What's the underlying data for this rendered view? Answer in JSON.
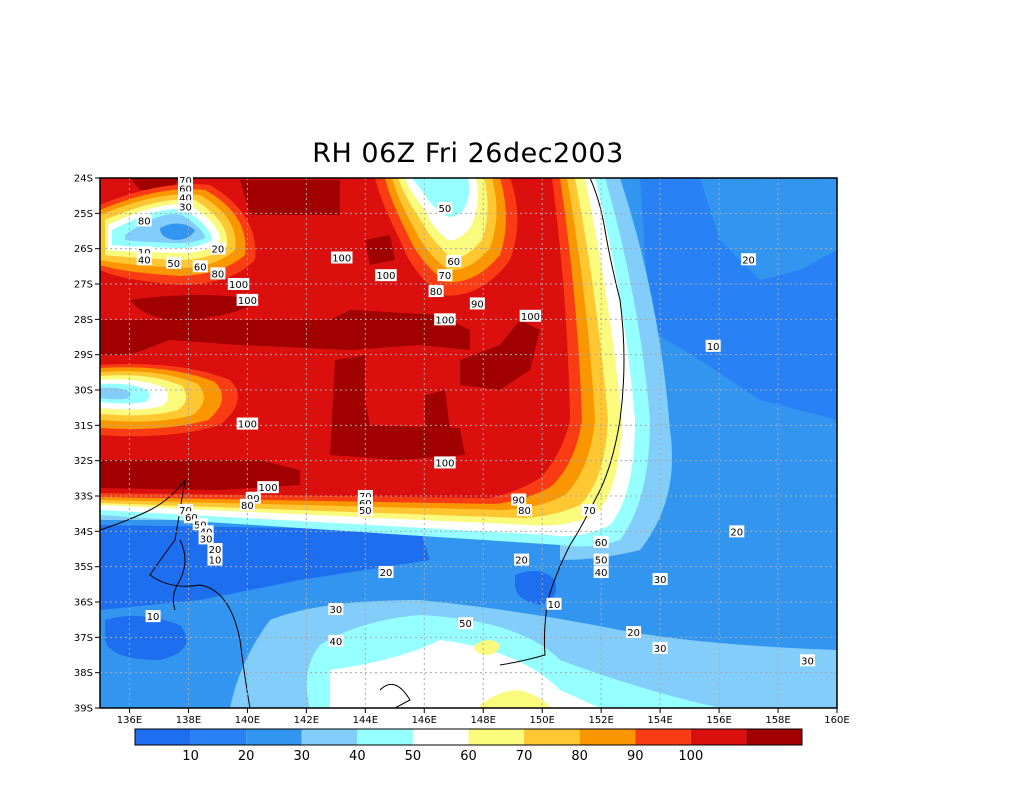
{
  "title": "RH 06Z Fri 26dec2003",
  "x_ticks": [
    "136E",
    "138E",
    "140E",
    "142E",
    "144E",
    "146E",
    "148E",
    "150E",
    "152E",
    "154E",
    "156E",
    "158E",
    "160E"
  ],
  "y_ticks": [
    "24S",
    "25S",
    "26S",
    "27S",
    "28S",
    "29S",
    "30S",
    "31S",
    "32S",
    "33S",
    "34S",
    "35S",
    "36S",
    "37S",
    "38S",
    "39S"
  ],
  "colorbar": {
    "colors": [
      "#1e6ef0",
      "#2882f5",
      "#3296f0",
      "#82cdfa",
      "#96ffff",
      "#ffffff",
      "#fafa7d",
      "#ffc832",
      "#fa9600",
      "#fa3c14",
      "#dc0f0f",
      "#a00000"
    ],
    "labels": [
      "10",
      "20",
      "30",
      "40",
      "50",
      "60",
      "70",
      "80",
      "90",
      "100"
    ]
  },
  "contour_labels": [
    {
      "text": "70",
      "lon": 137.9,
      "lat": 24.05
    },
    {
      "text": "60",
      "lon": 137.9,
      "lat": 24.3
    },
    {
      "text": "40",
      "lon": 137.9,
      "lat": 24.55
    },
    {
      "text": "30",
      "lon": 137.9,
      "lat": 24.8
    },
    {
      "text": "80",
      "lon": 136.5,
      "lat": 25.2
    },
    {
      "text": "20",
      "lon": 139.0,
      "lat": 26.0
    },
    {
      "text": "10",
      "lon": 136.5,
      "lat": 26.1
    },
    {
      "text": "40",
      "lon": 136.5,
      "lat": 26.3
    },
    {
      "text": "50",
      "lon": 137.5,
      "lat": 26.4
    },
    {
      "text": "60",
      "lon": 138.4,
      "lat": 26.5
    },
    {
      "text": "80",
      "lon": 139.0,
      "lat": 26.7
    },
    {
      "text": "100",
      "lon": 139.7,
      "lat": 27.0
    },
    {
      "text": "100",
      "lon": 140.0,
      "lat": 27.45
    },
    {
      "text": "100",
      "lon": 143.2,
      "lat": 26.25
    },
    {
      "text": "100",
      "lon": 144.7,
      "lat": 26.75
    },
    {
      "text": "50",
      "lon": 146.7,
      "lat": 24.85
    },
    {
      "text": "60",
      "lon": 147.0,
      "lat": 26.35
    },
    {
      "text": "70",
      "lon": 146.7,
      "lat": 26.75
    },
    {
      "text": "80",
      "lon": 146.4,
      "lat": 27.2
    },
    {
      "text": "90",
      "lon": 147.8,
      "lat": 27.55
    },
    {
      "text": "100",
      "lon": 146.7,
      "lat": 28.0
    },
    {
      "text": "100",
      "lon": 149.6,
      "lat": 27.9
    },
    {
      "text": "20",
      "lon": 157.0,
      "lat": 26.3
    },
    {
      "text": "10",
      "lon": 155.8,
      "lat": 28.75
    },
    {
      "text": "100",
      "lon": 140.0,
      "lat": 30.95
    },
    {
      "text": "100",
      "lon": 146.7,
      "lat": 32.05
    },
    {
      "text": "100",
      "lon": 140.7,
      "lat": 32.75
    },
    {
      "text": "90",
      "lon": 140.2,
      "lat": 33.05
    },
    {
      "text": "80",
      "lon": 140.0,
      "lat": 33.25
    },
    {
      "text": "70",
      "lon": 144.0,
      "lat": 33.0
    },
    {
      "text": "60",
      "lon": 144.0,
      "lat": 33.2
    },
    {
      "text": "50",
      "lon": 144.0,
      "lat": 33.4
    },
    {
      "text": "90",
      "lon": 149.2,
      "lat": 33.1
    },
    {
      "text": "80",
      "lon": 149.4,
      "lat": 33.4
    },
    {
      "text": "70",
      "lon": 137.9,
      "lat": 33.4
    },
    {
      "text": "60",
      "lon": 138.1,
      "lat": 33.6
    },
    {
      "text": "50",
      "lon": 138.4,
      "lat": 33.8
    },
    {
      "text": "40",
      "lon": 138.6,
      "lat": 34.0
    },
    {
      "text": "30",
      "lon": 138.6,
      "lat": 34.2
    },
    {
      "text": "20",
      "lon": 138.9,
      "lat": 34.5
    },
    {
      "text": "10",
      "lon": 138.9,
      "lat": 34.8
    },
    {
      "text": "70",
      "lon": 151.6,
      "lat": 33.4
    },
    {
      "text": "60",
      "lon": 152.0,
      "lat": 34.3
    },
    {
      "text": "20",
      "lon": 149.3,
      "lat": 34.8
    },
    {
      "text": "50",
      "lon": 152.0,
      "lat": 34.8
    },
    {
      "text": "40",
      "lon": 152.0,
      "lat": 35.15
    },
    {
      "text": "30",
      "lon": 154.0,
      "lat": 35.35
    },
    {
      "text": "20",
      "lon": 156.6,
      "lat": 34.0
    },
    {
      "text": "20",
      "lon": 144.7,
      "lat": 35.15
    },
    {
      "text": "10",
      "lon": 150.4,
      "lat": 36.05
    },
    {
      "text": "10",
      "lon": 136.8,
      "lat": 36.4
    },
    {
      "text": "30",
      "lon": 143.0,
      "lat": 36.2
    },
    {
      "text": "50",
      "lon": 147.4,
      "lat": 36.6
    },
    {
      "text": "20",
      "lon": 153.1,
      "lat": 36.85
    },
    {
      "text": "40",
      "lon": 143.0,
      "lat": 37.1
    },
    {
      "text": "30",
      "lon": 154.0,
      "lat": 37.3
    },
    {
      "text": "30",
      "lon": 159.0,
      "lat": 37.65
    }
  ]
}
